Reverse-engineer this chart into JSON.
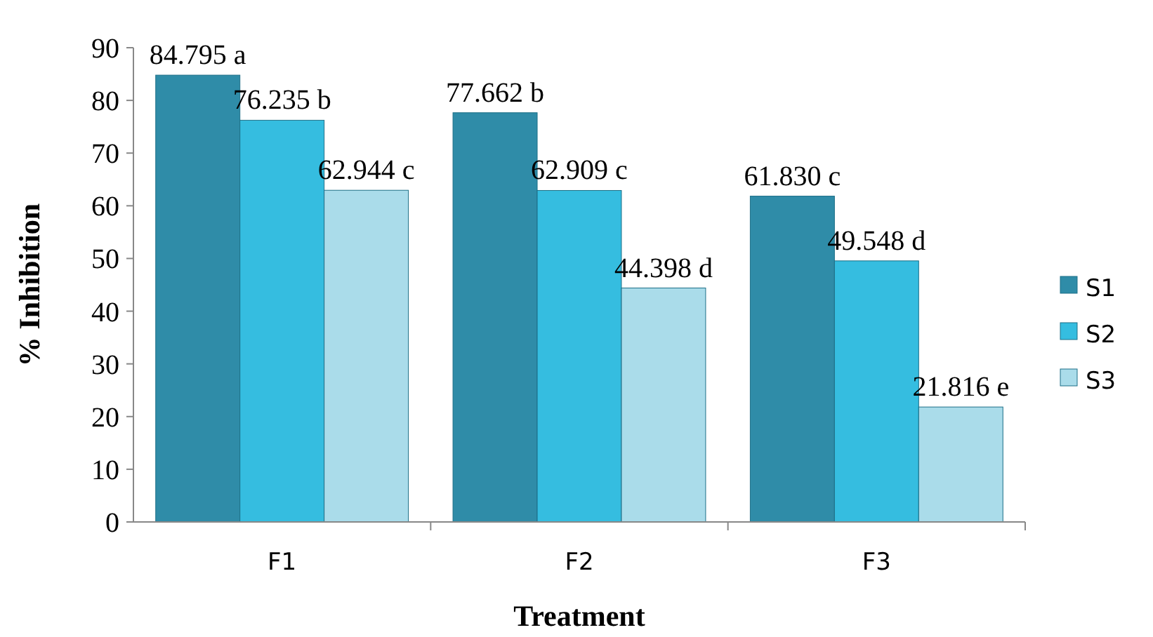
{
  "chart_data": {
    "type": "bar",
    "xlabel": "Treatment",
    "ylabel": "% Inhibition",
    "categories": [
      "F1",
      "F2",
      "F3"
    ],
    "series": [
      {
        "name": "S1",
        "color": "#2f8ca8",
        "values": [
          84.795,
          77.662,
          61.83
        ],
        "value_labels": [
          "84.795 a",
          "77.662 b",
          "61.830 c"
        ]
      },
      {
        "name": "S2",
        "color": "#35bde0",
        "values": [
          76.235,
          62.909,
          49.548
        ],
        "value_labels": [
          "76.235 b",
          "62.909 c",
          "49.548 d"
        ]
      },
      {
        "name": "S3",
        "color": "#aadcea",
        "values": [
          62.944,
          44.398,
          21.816
        ],
        "value_labels": [
          "62.944 c",
          "44.398 d",
          "21.816 e"
        ]
      }
    ],
    "ylim": [
      0,
      90
    ],
    "yticks": [
      0,
      10,
      20,
      30,
      40,
      50,
      60,
      70,
      80,
      90
    ],
    "legend": "right",
    "grid": false
  }
}
